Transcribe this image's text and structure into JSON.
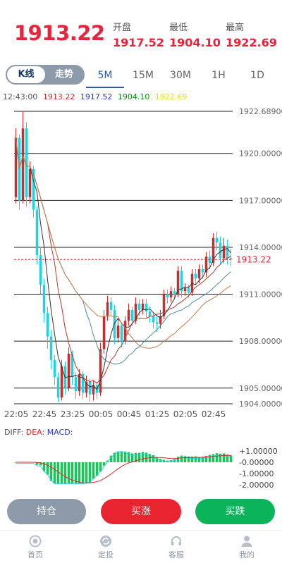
{
  "header": {
    "price": "1913.22",
    "stats": [
      {
        "label": "开盘",
        "value": "1917.52"
      },
      {
        "label": "最低",
        "value": "1904.10"
      },
      {
        "label": "最高",
        "value": "1922.69"
      }
    ]
  },
  "tabs": {
    "segment": [
      "K线",
      "走势"
    ],
    "timeframes": [
      "5M",
      "15M",
      "30M",
      "1H",
      "1D"
    ],
    "active_timeframe": "5M"
  },
  "legend": {
    "time": "12:43:00",
    "values": [
      "1913.22",
      "1917.52",
      "1904.10",
      "1922.69"
    ]
  },
  "colors": {
    "up": "#c62f2f",
    "down": "#1fd3e0",
    "accent": "#e8243c",
    "buy_green": "#0bb35a",
    "hold_gray": "#8d9aaa"
  },
  "chart_data": {
    "type": "candlestick",
    "y_axis_labels": [
      "1922.68900",
      "1920.00000",
      "1917.00000",
      "1914.00000",
      "1911.00000",
      "1908.00000",
      "1905.00000",
      "1904.00000"
    ],
    "ylim": [
      1904.0,
      1922.689
    ],
    "x_labels": [
      "22:05",
      "22:45",
      "23:25",
      "00:05",
      "00:45",
      "01:25",
      "02:05",
      "02:45"
    ],
    "current_price_label": "1913.22",
    "current_price": 1913.22,
    "candles": [
      [
        1917.2,
        1921.0,
        1916.8,
        1921.6
      ],
      [
        1921.0,
        1917.0,
        1916.4,
        1921.2
      ],
      [
        1917.0,
        1921.6,
        1916.8,
        1922.7
      ],
      [
        1921.6,
        1917.2,
        1916.6,
        1922.0
      ],
      [
        1917.2,
        1919.0,
        1916.8,
        1919.5
      ],
      [
        1919.0,
        1916.4,
        1915.9,
        1919.2
      ],
      [
        1916.4,
        1913.5,
        1912.9,
        1916.6
      ],
      [
        1913.5,
        1911.6,
        1911.0,
        1914.0
      ],
      [
        1911.6,
        1909.8,
        1909.2,
        1912.0
      ],
      [
        1909.8,
        1908.3,
        1907.5,
        1910.2
      ],
      [
        1908.3,
        1906.8,
        1906.2,
        1908.7
      ],
      [
        1906.8,
        1905.7,
        1905.2,
        1907.1
      ],
      [
        1905.7,
        1904.4,
        1904.1,
        1906.0
      ],
      [
        1904.4,
        1906.4,
        1904.2,
        1906.8
      ],
      [
        1906.4,
        1905.0,
        1904.6,
        1906.7
      ],
      [
        1905.0,
        1907.2,
        1904.8,
        1907.6
      ],
      [
        1907.2,
        1905.7,
        1905.2,
        1907.4
      ],
      [
        1905.7,
        1904.8,
        1904.3,
        1906.0
      ],
      [
        1904.8,
        1905.9,
        1904.5,
        1906.2
      ],
      [
        1905.9,
        1904.7,
        1904.3,
        1906.1
      ],
      [
        1904.7,
        1905.4,
        1904.4,
        1905.8
      ],
      [
        1905.4,
        1904.6,
        1904.1,
        1905.6
      ],
      [
        1904.6,
        1905.2,
        1904.2,
        1905.5
      ],
      [
        1905.2,
        1904.7,
        1904.3,
        1905.4
      ],
      [
        1904.7,
        1907.5,
        1904.5,
        1907.9
      ],
      [
        1907.5,
        1909.6,
        1907.2,
        1910.0
      ],
      [
        1909.6,
        1910.5,
        1909.3,
        1910.9
      ],
      [
        1910.5,
        1910.0,
        1909.6,
        1910.8
      ],
      [
        1910.0,
        1908.2,
        1907.8,
        1910.3
      ],
      [
        1908.2,
        1909.0,
        1907.9,
        1909.4
      ],
      [
        1909.0,
        1908.0,
        1907.6,
        1909.2
      ],
      [
        1908.0,
        1909.3,
        1907.8,
        1909.6
      ],
      [
        1909.3,
        1910.0,
        1909.0,
        1910.4
      ],
      [
        1910.0,
        1909.3,
        1909.0,
        1910.2
      ],
      [
        1909.3,
        1910.4,
        1909.1,
        1910.8
      ],
      [
        1910.4,
        1910.0,
        1909.6,
        1910.7
      ],
      [
        1910.0,
        1910.4,
        1909.7,
        1910.7
      ],
      [
        1910.4,
        1909.9,
        1909.5,
        1910.7
      ],
      [
        1909.9,
        1909.6,
        1909.2,
        1910.2
      ],
      [
        1909.6,
        1909.2,
        1908.8,
        1909.8
      ],
      [
        1909.2,
        1909.1,
        1908.6,
        1909.6
      ],
      [
        1909.1,
        1909.6,
        1908.8,
        1910.0
      ],
      [
        1909.6,
        1911.0,
        1909.4,
        1911.3
      ],
      [
        1911.0,
        1910.8,
        1910.4,
        1911.3
      ],
      [
        1910.8,
        1911.2,
        1910.5,
        1911.5
      ],
      [
        1911.2,
        1911.0,
        1910.7,
        1911.4
      ],
      [
        1911.0,
        1912.5,
        1910.8,
        1912.8
      ],
      [
        1912.5,
        1911.2,
        1910.8,
        1912.8
      ],
      [
        1911.2,
        1911.4,
        1910.9,
        1911.7
      ],
      [
        1911.4,
        1911.1,
        1910.8,
        1911.6
      ],
      [
        1911.1,
        1912.3,
        1910.9,
        1912.6
      ],
      [
        1912.3,
        1912.0,
        1911.6,
        1912.6
      ],
      [
        1912.0,
        1912.6,
        1911.7,
        1912.9
      ],
      [
        1912.6,
        1912.4,
        1912.0,
        1912.9
      ],
      [
        1912.4,
        1913.4,
        1912.1,
        1913.7
      ],
      [
        1913.4,
        1913.0,
        1912.6,
        1913.8
      ],
      [
        1913.0,
        1914.6,
        1912.8,
        1914.9
      ],
      [
        1914.6,
        1914.3,
        1913.8,
        1915.0
      ],
      [
        1914.3,
        1913.3,
        1912.9,
        1914.7
      ],
      [
        1913.3,
        1914.1,
        1913.0,
        1914.6
      ],
      [
        1914.1,
        1913.3,
        1912.9,
        1914.5
      ],
      [
        1913.3,
        1913.22,
        1912.8,
        1913.9
      ]
    ],
    "indicator": "MACD",
    "macd_labels": [
      "DIFF:",
      "DEA:",
      "MACD:"
    ],
    "macd_axis_labels": [
      "+1.00000",
      "-0.00000",
      "-1.00000",
      "-2.00000"
    ],
    "macd_ylim": [
      -2.0,
      1.0
    ]
  },
  "macd_legend": {
    "diff": "DIFF:",
    "dea": "DEA:",
    "macd": "MACD:"
  },
  "buttons": {
    "hold": "持仓",
    "buy_up": "买涨",
    "buy_down": "买跌"
  },
  "nav": [
    {
      "label": "首页",
      "icon": "home-icon"
    },
    {
      "label": "定投",
      "icon": "invest-icon"
    },
    {
      "label": "客服",
      "icon": "headset-icon"
    },
    {
      "label": "我的",
      "icon": "user-icon"
    }
  ]
}
